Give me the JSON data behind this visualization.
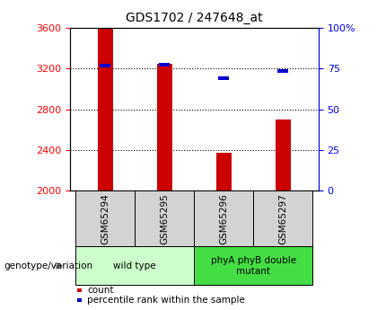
{
  "title": "GDS1702 / 247648_at",
  "categories": [
    "GSM65294",
    "GSM65295",
    "GSM65296",
    "GSM65297"
  ],
  "bar_values": [
    3590,
    3245,
    2375,
    2700
  ],
  "percentile_values": [
    3232,
    3235,
    3108,
    3178
  ],
  "bar_color": "#cc0000",
  "percentile_color": "#0000cc",
  "ylim": [
    2000,
    3600
  ],
  "yticks_left": [
    2000,
    2400,
    2800,
    3200,
    3600
  ],
  "yticks_right_labels": [
    "0",
    "25",
    "50",
    "75",
    "100%"
  ],
  "grid_values": [
    2400,
    2800,
    3200
  ],
  "groups": [
    {
      "label": "wild type",
      "indices": [
        0,
        1
      ],
      "color": "#ccffcc"
    },
    {
      "label": "phyA phyB double\nmutant",
      "indices": [
        2,
        3
      ],
      "color": "#44dd44"
    }
  ],
  "genotype_label": "genotype/variation",
  "legend_count_label": "count",
  "legend_percentile_label": "percentile rank within the sample",
  "title_fontsize": 10,
  "tick_fontsize": 8,
  "label_fontsize": 7.5,
  "bar_width": 0.25
}
